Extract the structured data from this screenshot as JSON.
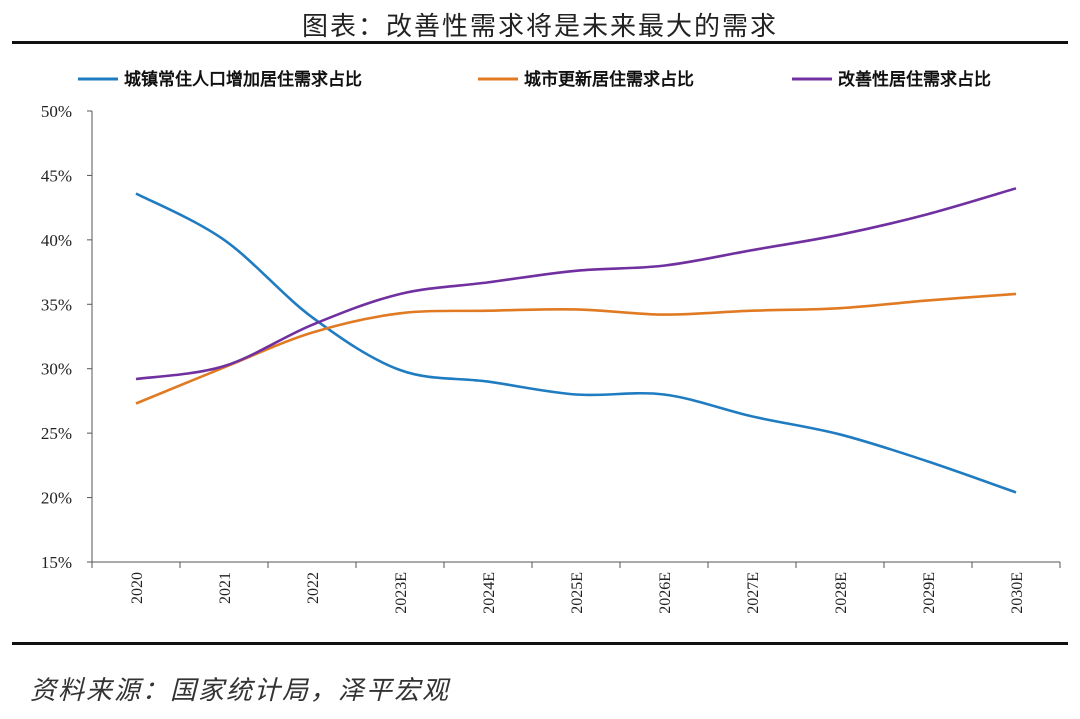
{
  "chart_data": {
    "type": "line",
    "title": "图表：改善性需求将是未来最大的需求",
    "source": "资料来源：国家统计局，泽平宏观",
    "categories": [
      "2020",
      "2021",
      "2022",
      "2023E",
      "2024E",
      "2025E",
      "2026E",
      "2027E",
      "2028E",
      "2029E",
      "2030E"
    ],
    "ylim": [
      15,
      50
    ],
    "yticks": [
      "15%",
      "20%",
      "25%",
      "30%",
      "35%",
      "40%",
      "45%",
      "50%"
    ],
    "ytick_values": [
      15,
      20,
      25,
      30,
      35,
      40,
      45,
      50
    ],
    "xlabel": "",
    "ylabel": "",
    "legend_position": "top",
    "grid": false,
    "series": [
      {
        "name": "城镇常住人口增加居住需求占比",
        "color": "#1f7cc1",
        "values": [
          43.6,
          40.0,
          34.0,
          29.9,
          29.0,
          28.0,
          28.0,
          26.3,
          24.9,
          22.8,
          20.4
        ]
      },
      {
        "name": "城市更新居住需求占比",
        "color": "#e07b24",
        "values": [
          27.3,
          30.1,
          32.8,
          34.3,
          34.5,
          34.6,
          34.2,
          34.5,
          34.7,
          35.3,
          35.8
        ]
      },
      {
        "name": "改善性居住需求占比",
        "color": "#7030a0",
        "values": [
          29.2,
          30.2,
          33.4,
          35.8,
          36.7,
          37.6,
          38.0,
          39.2,
          40.4,
          42.0,
          44.0
        ]
      }
    ]
  }
}
